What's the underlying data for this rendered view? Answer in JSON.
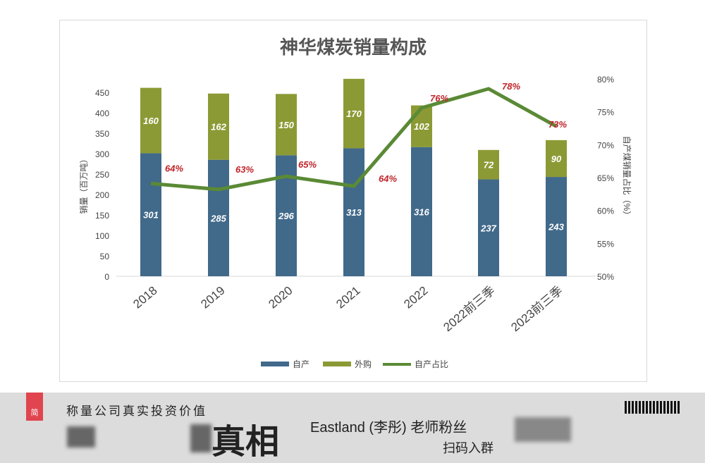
{
  "chart_data": {
    "type": "bar",
    "title": "神华煤炭销量构成",
    "categories": [
      "2018",
      "2019",
      "2020",
      "2021",
      "2022",
      "2022前三季",
      "2023前三季"
    ],
    "series": [
      {
        "name": "自产",
        "type": "bar",
        "stack": "s",
        "color": "#41698a",
        "values": [
          301,
          285,
          296,
          313,
          316,
          237,
          243
        ]
      },
      {
        "name": "外购",
        "type": "bar",
        "stack": "s",
        "color": "#8c9a35",
        "values": [
          160,
          162,
          150,
          170,
          102,
          72,
          90
        ]
      },
      {
        "name": "自产占比",
        "type": "line",
        "axis": "right",
        "color": "#5a8a35",
        "values": [
          64.1,
          63.2,
          65.2,
          63.7,
          75.6,
          78.5,
          72.8
        ],
        "labels": [
          "64%",
          "63%",
          "65%",
          "64%",
          "76%",
          "78%",
          "73%"
        ]
      }
    ],
    "ylabel": "销量（百万吨）",
    "y2label": "自产煤销量占比（%）",
    "ylim": [
      0,
      450
    ],
    "yticks": [
      "0",
      "50",
      "100",
      "150",
      "200",
      "250",
      "300",
      "350",
      "400",
      "450"
    ],
    "y2lim": [
      50,
      80
    ],
    "y2ticks": [
      "50%",
      "55%",
      "60%",
      "65%",
      "70%",
      "75%",
      "80%"
    ],
    "legend": [
      "自产",
      "外购",
      "自产占比"
    ],
    "legend_position": "bottom",
    "label_color": "#c0252b"
  },
  "banner": {
    "tab": "简",
    "slogan": "称量公司真实投资价值",
    "big": "真相",
    "teacher": "Eastland (李彤) 老师粉丝",
    "scan": "扫码入群"
  }
}
